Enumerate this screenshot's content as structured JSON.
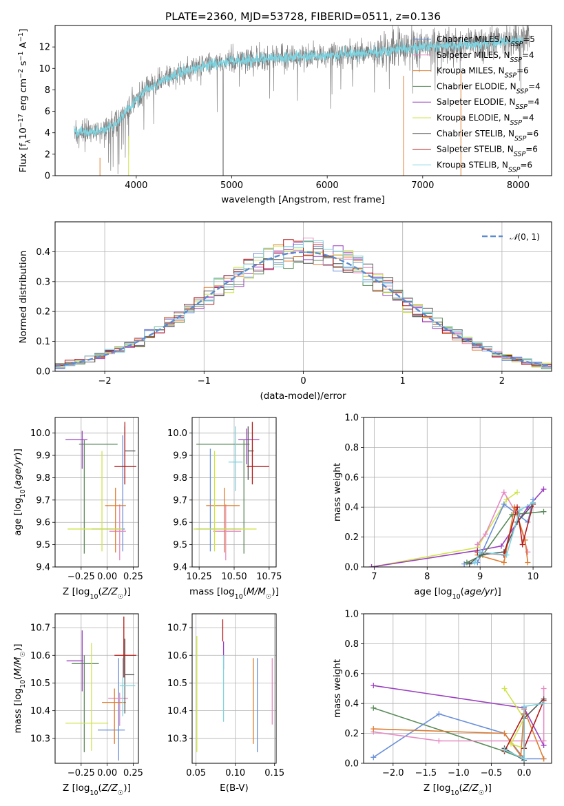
{
  "figure_title": "PLATE=2360, MJD=53728, FIBERID=0511, z=0.136",
  "colors": {
    "Chabrier MILES": "#6a8fd8",
    "Salpeter MILES": "#e58ac3",
    "Kroupa MILES": "#e07b2e",
    "Chabrier ELODIE": "#5a8a5a",
    "Salpeter ELODIE": "#9a3fbf",
    "Kroupa ELODIE": "#cfe34a",
    "Chabrier STELIB": "#555555",
    "Salpeter STELIB": "#b31b1b",
    "Kroupa STELIB": "#7dd3e0",
    "data": "#808080",
    "normal": "#5b8bd0"
  },
  "chart_data": [
    {
      "id": "spectrum",
      "type": "line",
      "xlabel": "wavelength [Angstrom, rest frame]",
      "ylabel": "Flux [f_λ10^-17 erg cm^-2 s^-1 A^-1]",
      "xlim": [
        3150,
        8350
      ],
      "ylim": [
        0,
        14
      ],
      "xticks": [
        4000,
        5000,
        6000,
        7000,
        8000
      ],
      "yticks": [
        0,
        2,
        4,
        6,
        8,
        10,
        12
      ],
      "grid": false,
      "legend_position": "top-right",
      "legend": [
        {
          "name": "Chabrier MILES",
          "nssp": 5
        },
        {
          "name": "Salpeter MILES",
          "nssp": 4
        },
        {
          "name": "Kroupa MILES",
          "nssp": 6
        },
        {
          "name": "Chabrier ELODIE",
          "nssp": 4
        },
        {
          "name": "Salpeter ELODIE",
          "nssp": 4
        },
        {
          "name": "Kroupa ELODIE",
          "nssp": 4
        },
        {
          "name": "Chabrier STELIB",
          "nssp": 6
        },
        {
          "name": "Salpeter STELIB",
          "nssp": 6
        },
        {
          "name": "Kroupa STELIB",
          "nssp": 6
        }
      ],
      "continuum": {
        "x": [
          3400,
          3650,
          3800,
          3950,
          4100,
          4300,
          4600,
          5000,
          5500,
          6000,
          6500,
          7000,
          7500,
          8000,
          8100
        ],
        "y": [
          4.0,
          4.2,
          5.0,
          6.5,
          8.0,
          9.0,
          10.0,
          10.7,
          11.0,
          11.2,
          11.5,
          12.0,
          12.2,
          12.6,
          12.8
        ]
      }
    },
    {
      "id": "residual_hist",
      "type": "histogram",
      "xlabel": "(data-model)/error",
      "ylabel": "Normed distribution",
      "xlim": [
        -2.5,
        2.5
      ],
      "ylim": [
        0,
        0.5
      ],
      "xticks": [
        -2,
        -1,
        0,
        1,
        2
      ],
      "yticks": [
        0.0,
        0.1,
        0.2,
        0.3,
        0.4
      ],
      "grid": true,
      "legend_position": "top-right",
      "legend": [
        "N(0,1)"
      ],
      "bin_width": 0.1
    },
    {
      "id": "age_Z",
      "type": "errorbar",
      "xlabel": "Z [log10(Z/Z☉)]",
      "ylabel": "age [log10(age/yr)]",
      "xlim": [
        -0.5,
        0.3
      ],
      "ylim": [
        9.4,
        10.07
      ],
      "xticks": [
        -0.25,
        0.0,
        0.25
      ],
      "yticks": [
        9.4,
        9.5,
        9.6,
        9.7,
        9.8,
        9.9,
        10.0
      ],
      "grid": true,
      "points": [
        {
          "series": "Chabrier MILES",
          "x": 0.15,
          "xerr": [
            0.3,
            0.02
          ],
          "y": 9.57,
          "yerr": [
            0.1,
            0.42
          ]
        },
        {
          "series": "Salpeter MILES",
          "x": 0.12,
          "xerr": [
            0.1,
            0.06
          ],
          "y": 9.56,
          "yerr": [
            0.13,
            0.12
          ]
        },
        {
          "series": "Kroupa MILES",
          "x": 0.08,
          "xerr": [
            0.1,
            0.1
          ],
          "y": 9.675,
          "yerr": [
            0.21,
            0.08
          ]
        },
        {
          "series": "Chabrier ELODIE",
          "x": -0.22,
          "xerr": [
            0.05,
            0.32
          ],
          "y": 9.95,
          "yerr": [
            0.49,
            0.02
          ]
        },
        {
          "series": "Salpeter ELODIE",
          "x": -0.24,
          "xerr": [
            0.16,
            0.05
          ],
          "y": 9.97,
          "yerr": [
            0.13,
            0.04
          ]
        },
        {
          "series": "Kroupa ELODIE",
          "x": -0.05,
          "xerr": [
            0.33,
            0.2
          ],
          "y": 9.57,
          "yerr": [
            0.1,
            0.35
          ]
        },
        {
          "series": "Chabrier STELIB",
          "x": 0.17,
          "xerr": [
            0.0,
            0.1
          ],
          "y": 9.92,
          "yerr": [
            0.15,
            0.11
          ]
        },
        {
          "series": "Salpeter STELIB",
          "x": 0.17,
          "xerr": [
            0.1,
            0.11
          ],
          "y": 9.85,
          "yerr": [
            0.08,
            0.2
          ]
        }
      ]
    },
    {
      "id": "age_mass",
      "type": "errorbar",
      "xlabel": "mass [log10(M/M☉)]",
      "ylabel": "",
      "xlim": [
        10.2,
        10.8
      ],
      "ylim": [
        9.4,
        10.07
      ],
      "xticks": [
        10.25,
        10.5,
        10.75
      ],
      "yticks": [
        9.4,
        9.5,
        9.6,
        9.7,
        9.8,
        9.9,
        10.0
      ],
      "grid": true,
      "points": [
        {
          "series": "Chabrier MILES",
          "x": 10.33,
          "xerr": [
            0.1,
            0.22
          ],
          "y": 9.57,
          "yerr": [
            0.1,
            0.36
          ]
        },
        {
          "series": "Salpeter MILES",
          "x": 10.44,
          "xerr": [
            0.09,
            0.11
          ],
          "y": 9.56,
          "yerr": [
            0.13,
            0.12
          ]
        },
        {
          "series": "Kroupa MILES",
          "x": 10.43,
          "xerr": [
            0.13,
            0.11
          ],
          "y": 9.675,
          "yerr": [
            0.21,
            0.08
          ]
        },
        {
          "series": "Chabrier ELODIE",
          "x": 10.57,
          "xerr": [
            0.34,
            0.04
          ],
          "y": 9.95,
          "yerr": [
            0.49,
            0.02
          ]
        },
        {
          "series": "Salpeter ELODIE",
          "x": 10.59,
          "xerr": [
            0.06,
            0.09
          ],
          "y": 9.97,
          "yerr": [
            0.11,
            0.05
          ]
        },
        {
          "series": "Kroupa ELODIE",
          "x": 10.36,
          "xerr": [
            0.15,
            0.3
          ],
          "y": 9.57,
          "yerr": [
            0.1,
            0.35
          ]
        },
        {
          "series": "Kroupa STELIB",
          "x": 10.51,
          "xerr": [
            0.05,
            0.05
          ],
          "y": 9.87,
          "yerr": [
            0.13,
            0.16
          ]
        },
        {
          "series": "Chabrier STELIB",
          "x": 10.6,
          "xerr": [
            0.0,
            0.04
          ],
          "y": 9.92,
          "yerr": [
            0.13,
            0.11
          ]
        },
        {
          "series": "Salpeter STELIB",
          "x": 10.63,
          "xerr": [
            0.04,
            0.12
          ],
          "y": 9.85,
          "yerr": [
            0.08,
            0.2
          ]
        }
      ]
    },
    {
      "id": "mass_Z",
      "type": "errorbar",
      "xlabel": "Z [log10(Z/Z☉)]",
      "ylabel": "mass [log10(M/M☉)]",
      "xlim": [
        -0.5,
        0.3
      ],
      "ylim": [
        10.21,
        10.75
      ],
      "xticks": [
        -0.25,
        0.0,
        0.25
      ],
      "yticks": [
        10.3,
        10.4,
        10.5,
        10.6,
        10.7
      ],
      "grid": true,
      "points": [
        {
          "series": "Chabrier MILES",
          "x": 0.11,
          "xerr": [
            0.2,
            0.06
          ],
          "y": 10.33,
          "yerr": [
            0.11,
            0.26
          ]
        },
        {
          "series": "Salpeter MILES",
          "x": 0.12,
          "xerr": [
            0.11,
            0.08
          ],
          "y": 10.445,
          "yerr": [
            0.1,
            0.02
          ]
        },
        {
          "series": "Kroupa MILES",
          "x": 0.07,
          "xerr": [
            0.12,
            0.11
          ],
          "y": 10.43,
          "yerr": [
            0.15,
            0.05
          ]
        },
        {
          "series": "Chabrier ELODIE",
          "x": -0.22,
          "xerr": [
            0.12,
            0.14
          ],
          "y": 10.57,
          "yerr": [
            0.32,
            0.03
          ]
        },
        {
          "series": "Salpeter ELODIE",
          "x": -0.24,
          "xerr": [
            0.15,
            0.01
          ],
          "y": 10.58,
          "yerr": [
            0.11,
            0.11
          ]
        },
        {
          "series": "Kroupa ELODIE",
          "x": -0.15,
          "xerr": [
            0.25,
            0.16
          ],
          "y": 10.355,
          "yerr": [
            0.1,
            0.29
          ]
        },
        {
          "series": "Chabrier STELIB",
          "x": 0.17,
          "xerr": [
            0.0,
            0.09
          ],
          "y": 10.53,
          "yerr": [
            0.14,
            0.13
          ]
        },
        {
          "series": "Salpeter STELIB",
          "x": 0.16,
          "xerr": [
            0.09,
            0.12
          ],
          "y": 10.6,
          "yerr": [
            0.08,
            0.14
          ]
        },
        {
          "series": "Kroupa STELIB",
          "x": 0.15,
          "xerr": [
            0.03,
            0.12
          ],
          "y": 10.49,
          "yerr": [
            0.11,
            0.1
          ]
        }
      ]
    },
    {
      "id": "mass_ebv",
      "type": "errorbar",
      "xlabel": "E(B-V)",
      "ylabel": "",
      "xlim": [
        0.045,
        0.152
      ],
      "ylim": [
        10.21,
        10.75
      ],
      "xticks": [
        0.05,
        0.1,
        0.15
      ],
      "yticks": [
        10.3,
        10.4,
        10.5,
        10.6,
        10.7
      ],
      "grid": true,
      "points": [
        {
          "series": "Kroupa ELODIE",
          "x": 0.051,
          "y": 10.45,
          "yerr": [
            0.2,
            0.22
          ]
        },
        {
          "series": "Salpeter STELIB",
          "x": 0.084,
          "y": 10.69,
          "yerr": [
            0.04,
            0.04
          ]
        },
        {
          "series": "Salpeter ELODIE",
          "x": 0.085,
          "y": 10.6,
          "yerr": [
            0.05,
            0.05
          ]
        },
        {
          "series": "Kroupa STELIB",
          "x": 0.085,
          "y": 10.5,
          "yerr": [
            0.14,
            0.1
          ]
        },
        {
          "series": "Kroupa MILES",
          "x": 0.123,
          "y": 10.43,
          "yerr": [
            0.15,
            0.16
          ]
        },
        {
          "series": "Chabrier MILES",
          "x": 0.128,
          "y": 10.42,
          "yerr": [
            0.17,
            0.17
          ]
        },
        {
          "series": "Salpeter MILES",
          "x": 0.147,
          "y": 10.47,
          "yerr": [
            0.12,
            0.12
          ]
        }
      ]
    },
    {
      "id": "weight_age",
      "type": "line",
      "xlabel": "age [log10(age/yr)]",
      "ylabel": "mass weight",
      "xlim": [
        6.8,
        10.35
      ],
      "ylim": [
        0,
        1
      ],
      "xticks": [
        7,
        8,
        9,
        10
      ],
      "yticks": [
        0.0,
        0.2,
        0.4,
        0.6,
        0.8,
        1.0
      ],
      "grid": true,
      "series": [
        {
          "name": "Kroupa ELODIE",
          "x": [
            6.95,
            8.95,
            9.5,
            9.7
          ],
          "y": [
            0.0,
            0.13,
            0.45,
            0.5
          ]
        },
        {
          "name": "Salpeter ELODIE",
          "x": [
            6.95,
            8.95,
            9.4,
            9.9,
            10.2
          ],
          "y": [
            0.0,
            0.11,
            0.14,
            0.4,
            0.52
          ]
        },
        {
          "name": "Salpeter MILES",
          "x": [
            8.95,
            9.1,
            9.45,
            9.7,
            9.9
          ],
          "y": [
            0.15,
            0.22,
            0.5,
            0.35,
            0.1
          ]
        },
        {
          "name": "Chabrier MILES",
          "x": [
            8.7,
            8.95,
            9.45,
            9.9,
            10.0
          ],
          "y": [
            0.02,
            0.03,
            0.42,
            0.3,
            0.45
          ]
        },
        {
          "name": "Kroupa MILES",
          "x": [
            8.95,
            9.45,
            9.65,
            9.85,
            9.9
          ],
          "y": [
            0.08,
            0.03,
            0.4,
            0.18,
            0.03
          ]
        },
        {
          "name": "Chabrier ELODIE",
          "x": [
            8.75,
            9.05,
            9.6,
            10.2
          ],
          "y": [
            0.03,
            0.08,
            0.35,
            0.37
          ]
        },
        {
          "name": "Chabrier STELIB",
          "x": [
            8.8,
            9.0,
            9.45,
            9.7,
            10.0
          ],
          "y": [
            0.02,
            0.08,
            0.1,
            0.3,
            0.42
          ]
        },
        {
          "name": "Salpeter STELIB",
          "x": [
            8.95,
            9.45,
            9.7,
            9.8,
            10.0
          ],
          "y": [
            0.1,
            0.08,
            0.4,
            0.15,
            0.42
          ]
        },
        {
          "name": "Kroupa STELIB",
          "x": [
            8.9,
            9.0,
            9.5,
            9.75,
            10.0
          ],
          "y": [
            0.03,
            0.1,
            0.08,
            0.38,
            0.43
          ]
        }
      ]
    },
    {
      "id": "weight_Z",
      "type": "line",
      "xlabel": "Z [log10(Z/Z☉)]",
      "ylabel": "mass weight",
      "xlim": [
        -2.45,
        0.42
      ],
      "ylim": [
        0,
        1
      ],
      "xticks": [
        -2.0,
        -1.5,
        -1.0,
        -0.5,
        0.0
      ],
      "yticks": [
        0.0,
        0.2,
        0.4,
        0.6,
        0.8,
        1.0
      ],
      "grid": true,
      "series": [
        {
          "name": "Salpeter ELODIE",
          "x": [
            -2.3,
            0.0,
            0.3
          ],
          "y": [
            0.52,
            0.37,
            0.12
          ]
        },
        {
          "name": "Chabrier ELODIE",
          "x": [
            -2.3,
            -0.3,
            0.0
          ],
          "y": [
            0.37,
            0.08,
            0.03
          ]
        },
        {
          "name": "Chabrier MILES",
          "x": [
            -2.3,
            -1.3,
            -0.3,
            0.0,
            0.3
          ],
          "y": [
            0.04,
            0.33,
            0.2,
            0.03,
            0.03
          ]
        },
        {
          "name": "Salpeter MILES",
          "x": [
            -2.3,
            -1.3,
            0.3,
            0.3
          ],
          "y": [
            0.21,
            0.15,
            0.15,
            0.5
          ]
        },
        {
          "name": "Kroupa MILES",
          "x": [
            -2.3,
            -0.3,
            -0.05,
            0.0,
            0.3
          ],
          "y": [
            0.23,
            0.2,
            0.05,
            0.36,
            0.03
          ]
        },
        {
          "name": "Kroupa ELODIE",
          "x": [
            -0.3,
            0.0,
            -0.2,
            0.0
          ],
          "y": [
            0.5,
            0.3,
            0.13,
            0.1
          ]
        },
        {
          "name": "Chabrier STELIB",
          "x": [
            -0.3,
            0.0,
            0.0,
            0.3
          ],
          "y": [
            0.1,
            0.02,
            0.3,
            0.43
          ]
        },
        {
          "name": "Salpeter STELIB",
          "x": [
            -0.3,
            0.0,
            0.0,
            0.3
          ],
          "y": [
            0.08,
            0.33,
            0.1,
            0.42
          ]
        },
        {
          "name": "Kroupa STELIB",
          "x": [
            -0.3,
            0.0,
            0.0,
            0.3
          ],
          "y": [
            0.09,
            0.03,
            0.38,
            0.4
          ]
        }
      ]
    }
  ]
}
